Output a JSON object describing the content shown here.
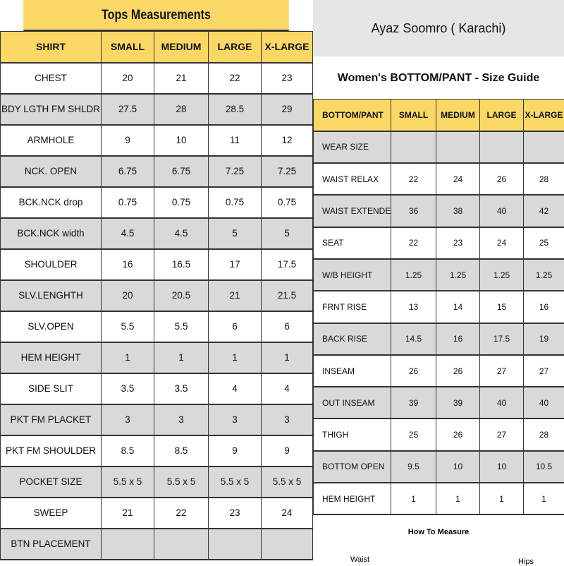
{
  "tops": {
    "title": "Tops Measurements",
    "headers": [
      "SHIRT",
      "SMALL",
      "MEDIUM",
      "LARGE",
      "X-LARGE"
    ],
    "rows": [
      [
        "CHEST",
        "20",
        "21",
        "22",
        "23"
      ],
      [
        "BDY LGTH FM SHLDR",
        "27.5",
        "28",
        "28.5",
        "29"
      ],
      [
        "ARMHOLE",
        "9",
        "10",
        "11",
        "12"
      ],
      [
        "NCK. OPEN",
        "6.75",
        "6.75",
        "7.25",
        "7.25"
      ],
      [
        "BCK.NCK drop",
        "0.75",
        "0.75",
        "0.75",
        "0.75"
      ],
      [
        "BCK.NCK width",
        "4.5",
        "4.5",
        "5",
        "5"
      ],
      [
        "SHOULDER",
        "16",
        "16.5",
        "17",
        "17.5"
      ],
      [
        "SLV.LENGHTH",
        "20",
        "20.5",
        "21",
        "21.5"
      ],
      [
        "SLV.OPEN",
        "5.5",
        "5.5",
        "6",
        "6"
      ],
      [
        "HEM HEIGHT",
        "1",
        "1",
        "1",
        "1"
      ],
      [
        "SIDE SLIT",
        "3.5",
        "3.5",
        "4",
        "4"
      ],
      [
        "PKT  FM PLACKET",
        "3",
        "3",
        "3",
        "3"
      ],
      [
        "PKT FM SHOULDER",
        "8.5",
        "8.5",
        "9",
        "9"
      ],
      [
        "POCKET SIZE",
        "5.5  x  5",
        "5.5  x  5",
        "5.5  x  5",
        "5.5  x  5"
      ],
      [
        "SWEEP",
        "21",
        "22",
        "23",
        "24"
      ],
      [
        "BTN PLACEMENT",
        "",
        "",
        "",
        ""
      ]
    ]
  },
  "bottoms": {
    "brand": "Ayaz Soomro ( Karachi)",
    "title": "Women's BOTTOM/PANT - Size Guide",
    "headers": [
      "BOTTOM/PANT",
      "SMALL",
      "MEDIUM",
      "LARGE",
      "X-LARGE"
    ],
    "rows": [
      [
        "WEAR SIZE",
        "",
        "",
        "",
        ""
      ],
      [
        "WAIST RELAX",
        "22",
        "24",
        "26",
        "28"
      ],
      [
        "WAIST EXTENDED",
        "36",
        "38",
        "40",
        "42"
      ],
      [
        "SEAT",
        "22",
        "23",
        "24",
        "25"
      ],
      [
        "W/B HEIGHT",
        "1.25",
        "1.25",
        "1.25",
        "1.25"
      ],
      [
        "FRNT RISE",
        "13",
        "14",
        "15",
        "16"
      ],
      [
        "BACK RISE",
        "14.5",
        "16",
        "17.5",
        "19"
      ],
      [
        "INSEAM",
        "26",
        "26",
        "27",
        "27"
      ],
      [
        "OUT INSEAM",
        "39",
        "39",
        "40",
        "40"
      ],
      [
        "THIGH",
        "25",
        "26",
        "27",
        "28"
      ],
      [
        "BOTTOM OPEN",
        "9.5",
        "10",
        "10",
        "10.5"
      ],
      [
        "HEM HEIGHT",
        "1",
        "1",
        "1",
        "1"
      ]
    ],
    "how_to": "How To Measure",
    "waist": "Waist",
    "hips": "Hips"
  },
  "colors": {
    "header": "#fbd866",
    "alt_row": "#d9d9d9",
    "brand_band": "#e6e6e6"
  }
}
